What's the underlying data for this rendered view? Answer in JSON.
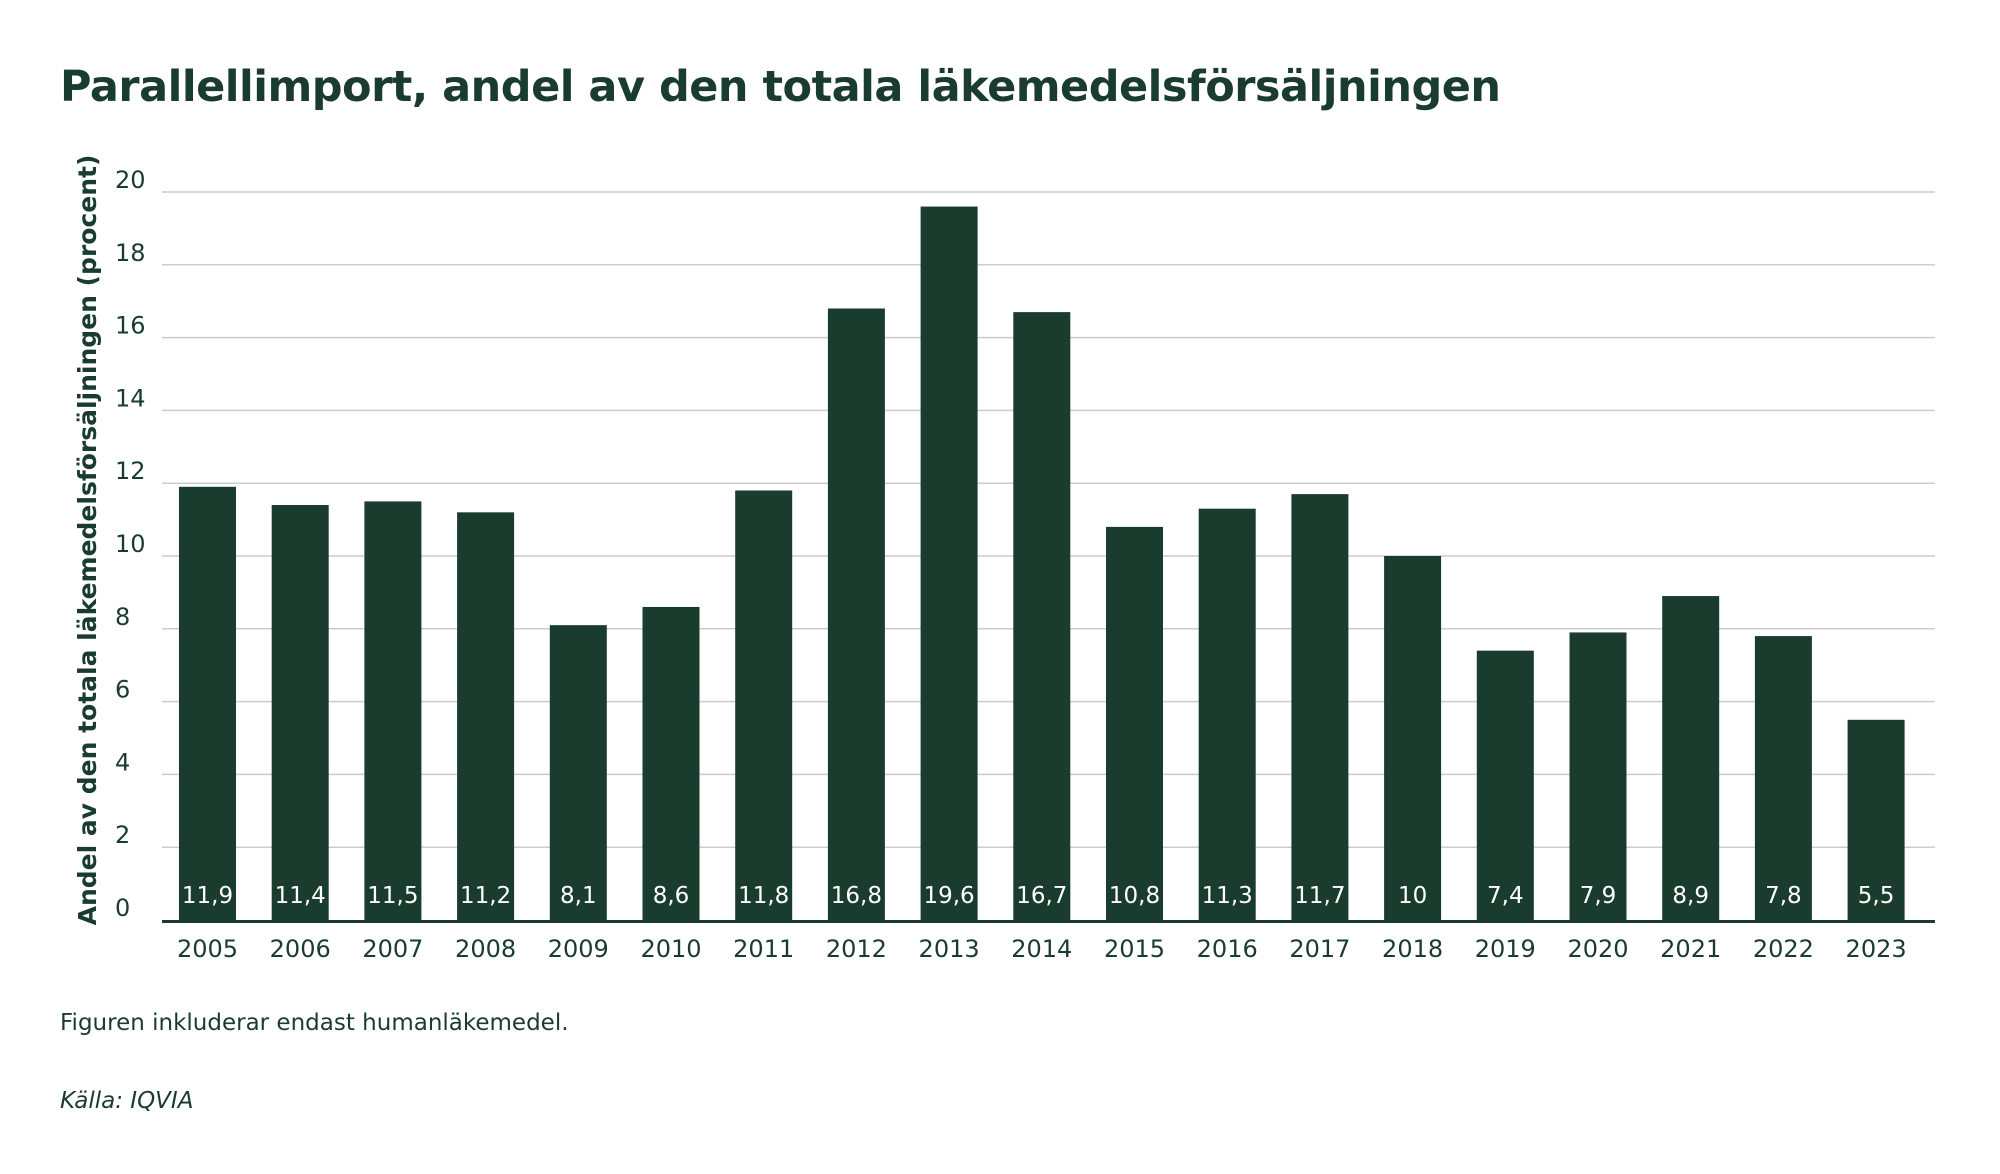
{
  "chart_data": {
    "type": "bar",
    "title": "Parallellimport, andel av den totala läkemedelsförsäljningen",
    "xlabel": "",
    "ylabel": "Andel av den totala läkemedelsförsäljningen (procent)",
    "ylim": [
      0,
      20
    ],
    "yticks": [
      0,
      2,
      4,
      6,
      8,
      10,
      12,
      14,
      16,
      18,
      20
    ],
    "grid": true,
    "categories": [
      "2005",
      "2006",
      "2007",
      "2008",
      "2009",
      "2010",
      "2011",
      "2012",
      "2013",
      "2014",
      "2015",
      "2016",
      "2017",
      "2018",
      "2019",
      "2020",
      "2021",
      "2022",
      "2023"
    ],
    "values": [
      11.9,
      11.4,
      11.5,
      11.2,
      8.1,
      8.6,
      11.8,
      16.8,
      19.6,
      16.7,
      10.8,
      11.3,
      11.7,
      10,
      7.4,
      7.9,
      8.9,
      7.8,
      5.5
    ],
    "data_labels": [
      "11,9",
      "11,4",
      "11,5",
      "11,2",
      "8,1",
      "8,6",
      "11,8",
      "16,8",
      "19,6",
      "16,7",
      "10,8",
      "11,3",
      "11,7",
      "10",
      "7,4",
      "7,9",
      "8,9",
      "7,8",
      "5,5"
    ],
    "bar_color": "#1a3c2f",
    "grid_color": "#cccccc",
    "label_color": "#ffffff"
  },
  "notes": {
    "footnote": "Figuren inkluderar endast humanläkemedel.",
    "source": "Källa: IQVIA"
  }
}
